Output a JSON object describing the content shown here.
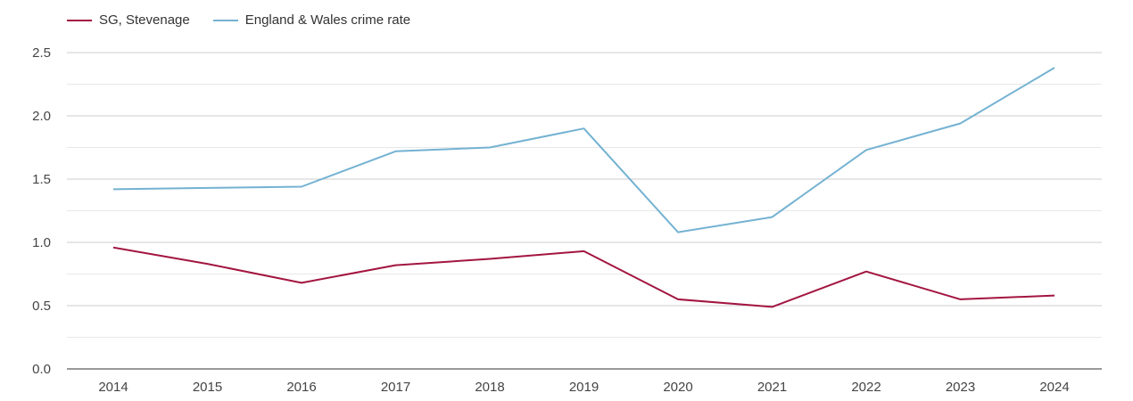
{
  "chart_data": {
    "type": "line",
    "title": "",
    "xlabel": "",
    "ylabel": "",
    "legend_position": "top-left",
    "grid": true,
    "ylim": [
      0,
      2.5
    ],
    "yticks": [
      "0.0",
      "0.5",
      "1.0",
      "1.5",
      "2.0",
      "2.5"
    ],
    "categories": [
      "2014",
      "2015",
      "2016",
      "2017",
      "2018",
      "2019",
      "2020",
      "2021",
      "2022",
      "2023",
      "2024"
    ],
    "series": [
      {
        "name": "SG, Stevenage",
        "color": "#a31541",
        "values": [
          0.96,
          0.83,
          0.68,
          0.82,
          0.87,
          0.93,
          0.55,
          0.49,
          0.77,
          0.55,
          0.58
        ]
      },
      {
        "name": "England & Wales crime rate",
        "color": "#74b2d2",
        "values": [
          1.42,
          1.43,
          1.44,
          1.72,
          1.75,
          1.9,
          1.08,
          1.2,
          1.73,
          1.94,
          2.38
        ]
      }
    ]
  }
}
